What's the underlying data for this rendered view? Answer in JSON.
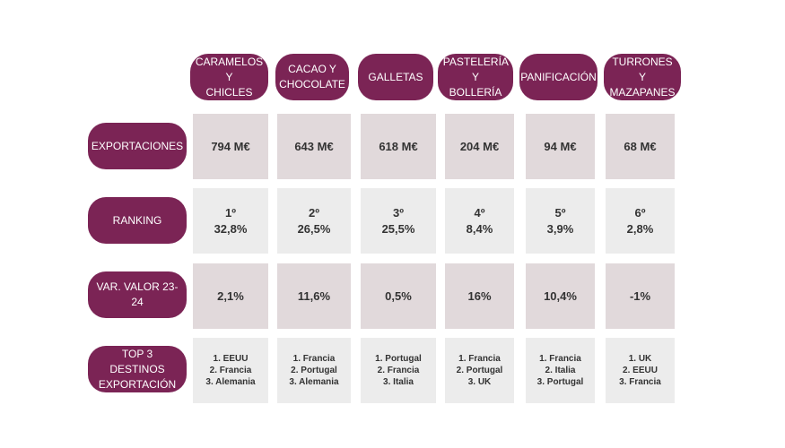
{
  "columns": [
    "CARAMELOS Y\nCHICLES",
    "CACAO Y\nCHOCOLATE",
    "GALLETAS",
    "PASTELERÍA Y\nBOLLERÍA",
    "PANIFICACIÓN",
    "TURRONES Y\nMAZAPANES"
  ],
  "rows": {
    "exportaciones": {
      "label": "EXPORTACIONES",
      "values": [
        "794 M€",
        "643 M€",
        "618 M€",
        "204 M€",
        "94 M€",
        "68 M€"
      ]
    },
    "ranking": {
      "label": "RANKING",
      "positions": [
        "1º",
        "2º",
        "3º",
        "4º",
        "5º",
        "6º"
      ],
      "shares": [
        "32,8%",
        "26,5%",
        "25,5%",
        "8,4%",
        "3,9%",
        "2,8%"
      ]
    },
    "variacion": {
      "label": "VAR. VALOR 23-24",
      "values": [
        "2,1%",
        "11,6%",
        "0,5%",
        "16%",
        "10,4%",
        "-1%"
      ]
    },
    "destinos": {
      "label": "TOP 3 DESTINOS\nEXPORTACIÓN",
      "values": [
        [
          "1. EEUU",
          "2. Francia",
          "3. Alemania"
        ],
        [
          "1. Francia",
          "2. Portugal",
          "3. Alemania"
        ],
        [
          "1. Portugal",
          "2. Francia",
          "3. Italia"
        ],
        [
          "1. Francia",
          "2. Portugal",
          "3. UK"
        ],
        [
          "1. Francia",
          "2. Italia",
          "3. Portugal"
        ],
        [
          "1. UK",
          "2. EEUU",
          "3. Francia"
        ]
      ]
    }
  },
  "colors": {
    "pill": "#7b2455",
    "cell_dark": "#e1d9db",
    "cell_light": "#ececec"
  }
}
